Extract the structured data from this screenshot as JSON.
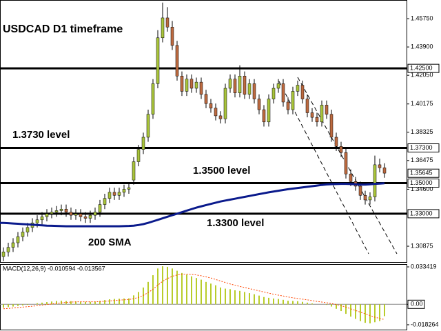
{
  "chart_data": [
    {
      "type": "candlestick",
      "title": "USDCAD D1 timeframe",
      "up_color": "#a9c43a",
      "down_color": "#bd6a40",
      "level_color": "#000000",
      "ylim": [
        1.2984,
        1.4697
      ],
      "yticks": [
        {
          "value": 1.4575,
          "label": "1.45750"
        },
        {
          "value": 1.439,
          "label": "1.43900"
        },
        {
          "value": 1.4205,
          "label": "1.42050"
        },
        {
          "value": 1.40175,
          "label": "1.40175"
        },
        {
          "value": 1.38325,
          "label": "1.38325"
        },
        {
          "value": 1.36475,
          "label": "1.36475"
        },
        {
          "value": 1.346,
          "label": "1.34600"
        },
        {
          "value": 1.30875,
          "label": "1.30875"
        }
      ],
      "levels": [
        {
          "value": 1.425,
          "label": "1.42500"
        },
        {
          "value": 1.373,
          "label": "1.37300"
        },
        {
          "value": 1.35,
          "label": "1.35000"
        },
        {
          "value": 1.33,
          "label": "1.33000"
        }
      ],
      "current_price": {
        "value": 1.35645,
        "label": "1.35645"
      },
      "annotations": [
        "1.3730 level",
        "1.3500 level",
        "1.3300 level"
      ],
      "open": [
        1.302,
        1.305,
        1.308,
        1.311,
        1.315,
        1.318,
        1.321,
        1.324,
        1.326,
        1.328,
        1.33,
        1.331,
        1.332,
        1.333,
        1.331,
        1.329,
        1.33,
        1.328,
        1.327,
        1.329,
        1.331,
        1.336,
        1.34,
        1.344,
        1.342,
        1.344,
        1.346,
        1.352,
        1.364,
        1.372,
        1.38,
        1.395,
        1.415,
        1.445,
        1.458,
        1.452,
        1.44,
        1.42,
        1.41,
        1.418,
        1.412,
        1.416,
        1.408,
        1.402,
        1.399,
        1.394,
        1.392,
        1.412,
        1.418,
        1.409,
        1.42,
        1.408,
        1.415,
        1.405,
        1.398,
        1.39,
        1.405,
        1.412,
        1.415,
        1.403,
        1.398,
        1.41,
        1.414,
        1.405,
        1.396,
        1.393,
        1.39,
        1.401,
        1.395,
        1.38,
        1.374,
        1.37,
        1.356,
        1.351,
        1.348,
        1.342,
        1.339,
        1.341,
        1.362,
        1.36
      ],
      "high": [
        1.308,
        1.311,
        1.314,
        1.318,
        1.321,
        1.324,
        1.327,
        1.329,
        1.331,
        1.333,
        1.334,
        1.335,
        1.336,
        1.336,
        1.334,
        1.333,
        1.333,
        1.331,
        1.332,
        1.334,
        1.339,
        1.343,
        1.347,
        1.347,
        1.347,
        1.349,
        1.35,
        1.367,
        1.375,
        1.383,
        1.398,
        1.418,
        1.45,
        1.468,
        1.465,
        1.456,
        1.443,
        1.423,
        1.421,
        1.421,
        1.419,
        1.419,
        1.411,
        1.405,
        1.402,
        1.397,
        1.415,
        1.421,
        1.421,
        1.427,
        1.423,
        1.418,
        1.418,
        1.408,
        1.401,
        1.408,
        1.415,
        1.418,
        1.418,
        1.406,
        1.413,
        1.417,
        1.417,
        1.408,
        1.399,
        1.396,
        1.404,
        1.404,
        1.398,
        1.383,
        1.377,
        1.373,
        1.359,
        1.354,
        1.351,
        1.345,
        1.344,
        1.368,
        1.366,
        1.363
      ],
      "low": [
        1.299,
        1.302,
        1.305,
        1.308,
        1.312,
        1.315,
        1.318,
        1.321,
        1.323,
        1.325,
        1.327,
        1.328,
        1.329,
        1.328,
        1.326,
        1.326,
        1.325,
        1.324,
        1.324,
        1.326,
        1.328,
        1.333,
        1.337,
        1.339,
        1.339,
        1.341,
        1.343,
        1.349,
        1.361,
        1.369,
        1.377,
        1.392,
        1.412,
        1.442,
        1.449,
        1.437,
        1.417,
        1.407,
        1.407,
        1.409,
        1.409,
        1.405,
        1.399,
        1.396,
        1.391,
        1.389,
        1.389,
        1.409,
        1.406,
        1.406,
        1.405,
        1.405,
        1.402,
        1.395,
        1.387,
        1.387,
        1.402,
        1.409,
        1.4,
        1.395,
        1.395,
        1.407,
        1.402,
        1.393,
        1.39,
        1.387,
        1.387,
        1.392,
        1.377,
        1.371,
        1.367,
        1.353,
        1.348,
        1.345,
        1.339,
        1.336,
        1.336,
        1.338,
        1.357,
        1.3535
      ],
      "close": [
        1.305,
        1.308,
        1.311,
        1.315,
        1.318,
        1.321,
        1.324,
        1.326,
        1.328,
        1.33,
        1.331,
        1.332,
        1.333,
        1.331,
        1.329,
        1.33,
        1.328,
        1.327,
        1.329,
        1.331,
        1.336,
        1.34,
        1.344,
        1.342,
        1.344,
        1.346,
        1.347,
        1.364,
        1.372,
        1.38,
        1.395,
        1.415,
        1.445,
        1.458,
        1.452,
        1.44,
        1.42,
        1.41,
        1.418,
        1.412,
        1.416,
        1.408,
        1.402,
        1.399,
        1.394,
        1.392,
        1.412,
        1.418,
        1.409,
        1.42,
        1.408,
        1.415,
        1.405,
        1.398,
        1.39,
        1.405,
        1.412,
        1.415,
        1.403,
        1.398,
        1.41,
        1.414,
        1.405,
        1.396,
        1.393,
        1.39,
        1.401,
        1.395,
        1.38,
        1.374,
        1.37,
        1.356,
        1.351,
        1.348,
        1.342,
        1.339,
        1.341,
        1.362,
        1.36,
        1.3565
      ],
      "series": [
        {
          "name": "200 SMA",
          "color": "#0a1a8c",
          "values": [
            1.324,
            1.3238,
            1.3236,
            1.3234,
            1.3232,
            1.323,
            1.3228,
            1.3226,
            1.3224,
            1.3222,
            1.3221,
            1.322,
            1.3219,
            1.3218,
            1.3218,
            1.3218,
            1.3218,
            1.3218,
            1.3218,
            1.3218,
            1.3218,
            1.3218,
            1.3218,
            1.3218,
            1.3218,
            1.3219,
            1.322,
            1.3222,
            1.3226,
            1.3232,
            1.324,
            1.325,
            1.326,
            1.327,
            1.328,
            1.329,
            1.33,
            1.331,
            1.332,
            1.333,
            1.334,
            1.3348,
            1.3356,
            1.3364,
            1.3372,
            1.338,
            1.3386,
            1.3392,
            1.3398,
            1.3404,
            1.341,
            1.3416,
            1.3422,
            1.3428,
            1.3434,
            1.344,
            1.3445,
            1.345,
            1.3455,
            1.346,
            1.3464,
            1.3468,
            1.3472,
            1.3476,
            1.348,
            1.3484,
            1.3488,
            1.3491,
            1.3493,
            1.3494,
            1.3495,
            1.3495,
            1.3494,
            1.3492,
            1.349,
            1.349,
            1.3492,
            1.3495,
            1.3497,
            1.3499
          ]
        }
      ]
    },
    {
      "type": "macd",
      "title": "MACD(12,26,9) -0.010594 -0.013567",
      "color": "#b8cc2a",
      "signal_color": "#ff4500",
      "ylim": [
        -0.0226,
        0.0359
      ],
      "yticks": [
        0.033419,
        {
          "value": 0,
          "label": "0.00"
        },
        -0.018264
      ],
      "values": [
        -0.003,
        -0.0025,
        -0.002,
        -0.0015,
        -0.001,
        -0.0005,
        0.0,
        0.001,
        0.0015,
        0.002,
        0.0025,
        0.003,
        0.0032,
        0.003,
        0.0028,
        0.0026,
        0.0024,
        0.0022,
        0.0022,
        0.0024,
        0.003,
        0.0038,
        0.0045,
        0.0048,
        0.005,
        0.0052,
        0.0053,
        0.008,
        0.011,
        0.015,
        0.02,
        0.026,
        0.032,
        0.034,
        0.0335,
        0.032,
        0.03,
        0.028,
        0.0265,
        0.025,
        0.0235,
        0.022,
        0.02,
        0.0185,
        0.017,
        0.015,
        0.014,
        0.0135,
        0.0125,
        0.012,
        0.011,
        0.01,
        0.009,
        0.0078,
        0.0065,
        0.0058,
        0.0052,
        0.0048,
        0.004,
        0.0032,
        0.003,
        0.0028,
        0.0022,
        0.0015,
        0.0008,
        0.0,
        0.0,
        -0.0005,
        -0.002,
        -0.004,
        -0.006,
        -0.0085,
        -0.011,
        -0.013,
        -0.015,
        -0.0165,
        -0.017,
        -0.016,
        -0.015,
        -0.0106
      ],
      "signal": [
        -0.004,
        -0.0037,
        -0.0033,
        -0.0029,
        -0.0025,
        -0.0021,
        -0.0017,
        -0.0012,
        -0.0007,
        -0.0002,
        0.0003,
        0.0008,
        0.0013,
        0.0017,
        0.002,
        0.0022,
        0.0023,
        0.0023,
        0.0023,
        0.0023,
        0.0024,
        0.0027,
        0.003,
        0.0034,
        0.0037,
        0.004,
        0.0043,
        0.005,
        0.0062,
        0.008,
        0.0105,
        0.0135,
        0.017,
        0.0205,
        0.023,
        0.025,
        0.0262,
        0.0268,
        0.027,
        0.0268,
        0.0262,
        0.0255,
        0.0245,
        0.0235,
        0.0222,
        0.0208,
        0.0195,
        0.0182,
        0.017,
        0.016,
        0.015,
        0.014,
        0.013,
        0.012,
        0.011,
        0.01,
        0.009,
        0.0082,
        0.0074,
        0.0066,
        0.0058,
        0.0052,
        0.0046,
        0.004,
        0.0033,
        0.0026,
        0.002,
        0.0014,
        0.0007,
        -0.0002,
        -0.0012,
        -0.0025,
        -0.004,
        -0.0055,
        -0.007,
        -0.0085,
        -0.01,
        -0.0115,
        -0.0126,
        -0.0136
      ]
    }
  ]
}
